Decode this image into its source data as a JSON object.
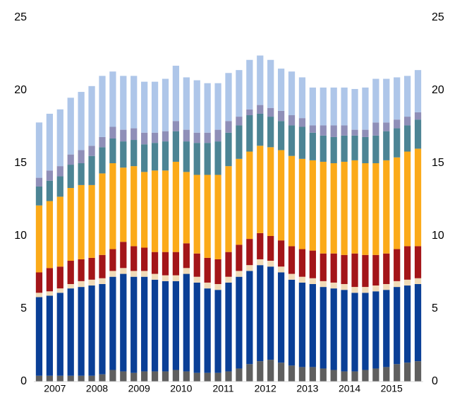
{
  "chart_data": {
    "type": "stacked_bar",
    "year_labels": [
      "2007",
      "2008",
      "2009",
      "2010",
      "2011",
      "2012",
      "2013",
      "2014",
      "2015"
    ],
    "bars_per_year": 4,
    "bar_count": 37,
    "ylim": [
      0,
      25
    ],
    "yticks": [
      0,
      5,
      10,
      15,
      20,
      25
    ],
    "y2lim": [
      0,
      25
    ],
    "y2ticks": [
      0,
      5,
      10,
      15,
      20,
      25
    ],
    "grid": false,
    "series": [
      {
        "color": "#5f5f5f",
        "values": [
          0.4,
          0.4,
          0.4,
          0.4,
          0.4,
          0.4,
          0.5,
          0.8,
          0.7,
          0.6,
          0.7,
          0.7,
          0.7,
          0.8,
          0.7,
          0.6,
          0.6,
          0.6,
          0.7,
          0.9,
          1.2,
          1.4,
          1.5,
          1.3,
          1.1,
          1.0,
          1.0,
          0.9,
          0.8,
          0.7,
          0.7,
          0.8,
          0.9,
          1.0,
          1.2,
          1.3,
          1.4
        ]
      },
      {
        "color": "#0a3f96",
        "values": [
          5.4,
          5.5,
          5.7,
          6.0,
          6.1,
          6.2,
          6.2,
          6.4,
          6.7,
          6.6,
          6.5,
          6.3,
          6.2,
          6.1,
          6.7,
          6.2,
          5.8,
          5.7,
          6.1,
          6.3,
          6.4,
          6.6,
          6.4,
          6.2,
          5.9,
          5.8,
          5.7,
          5.6,
          5.6,
          5.6,
          5.4,
          5.3,
          5.3,
          5.3,
          5.3,
          5.3,
          5.3
        ]
      },
      {
        "color": "#f0dbb8",
        "values": [
          0.3,
          0.3,
          0.3,
          0.3,
          0.4,
          0.4,
          0.4,
          0.4,
          0.4,
          0.4,
          0.4,
          0.4,
          0.4,
          0.4,
          0.4,
          0.4,
          0.4,
          0.4,
          0.4,
          0.4,
          0.4,
          0.4,
          0.4,
          0.4,
          0.4,
          0.4,
          0.4,
          0.4,
          0.4,
          0.4,
          0.4,
          0.4,
          0.4,
          0.4,
          0.4,
          0.4,
          0.4
        ]
      },
      {
        "color": "#a31519",
        "values": [
          1.4,
          1.6,
          1.5,
          1.6,
          1.5,
          1.5,
          1.6,
          1.5,
          1.8,
          1.7,
          1.6,
          1.5,
          1.6,
          1.6,
          1.7,
          1.6,
          1.7,
          1.7,
          1.7,
          1.8,
          1.8,
          1.8,
          1.7,
          1.8,
          1.9,
          1.9,
          1.9,
          1.9,
          2.0,
          2.0,
          2.3,
          2.2,
          2.1,
          2.1,
          2.2,
          2.3,
          2.2
        ]
      },
      {
        "color": "#fbaa19",
        "values": [
          4.6,
          4.6,
          4.8,
          5.0,
          5.1,
          5.0,
          5.6,
          5.9,
          5.1,
          5.5,
          5.2,
          5.6,
          5.6,
          6.2,
          4.9,
          5.4,
          5.7,
          5.8,
          5.9,
          5.9,
          6.0,
          6.0,
          6.1,
          6.2,
          6.2,
          6.2,
          6.2,
          6.3,
          6.2,
          6.4,
          6.4,
          6.3,
          6.3,
          6.4,
          6.3,
          6.5,
          6.7
        ]
      },
      {
        "color": "#4c8494",
        "values": [
          1.3,
          1.4,
          1.4,
          1.6,
          1.5,
          2.0,
          1.8,
          1.7,
          1.8,
          1.8,
          1.9,
          1.9,
          2.0,
          2.1,
          2.1,
          2.2,
          2.2,
          2.3,
          2.3,
          2.3,
          2.5,
          2.2,
          2.1,
          2.0,
          2.1,
          2.2,
          1.9,
          1.8,
          1.8,
          1.8,
          1.7,
          1.8,
          1.9,
          2.0,
          2.0,
          1.8,
          2.0
        ]
      },
      {
        "color": "#8f8fb8",
        "values": [
          0.6,
          0.7,
          0.7,
          0.7,
          0.9,
          0.7,
          0.7,
          0.8,
          0.8,
          0.8,
          0.8,
          0.7,
          0.7,
          0.7,
          0.8,
          0.7,
          0.7,
          0.8,
          0.8,
          0.6,
          0.4,
          0.6,
          0.6,
          0.7,
          0.7,
          0.6,
          0.5,
          0.7,
          0.8,
          0.7,
          0.4,
          0.5,
          0.9,
          0.6,
          0.6,
          0.6,
          0.5
        ]
      },
      {
        "color": "#aec6e9",
        "values": [
          3.8,
          3.9,
          3.9,
          3.9,
          4.0,
          4.1,
          4.2,
          3.8,
          3.7,
          3.6,
          3.5,
          3.5,
          3.6,
          3.8,
          3.6,
          3.6,
          3.4,
          3.2,
          3.3,
          3.2,
          3.4,
          3.4,
          3.3,
          2.9,
          3.0,
          2.8,
          2.6,
          2.6,
          2.6,
          2.6,
          2.8,
          2.9,
          3.0,
          3.0,
          2.9,
          2.8,
          2.9
        ]
      }
    ]
  }
}
